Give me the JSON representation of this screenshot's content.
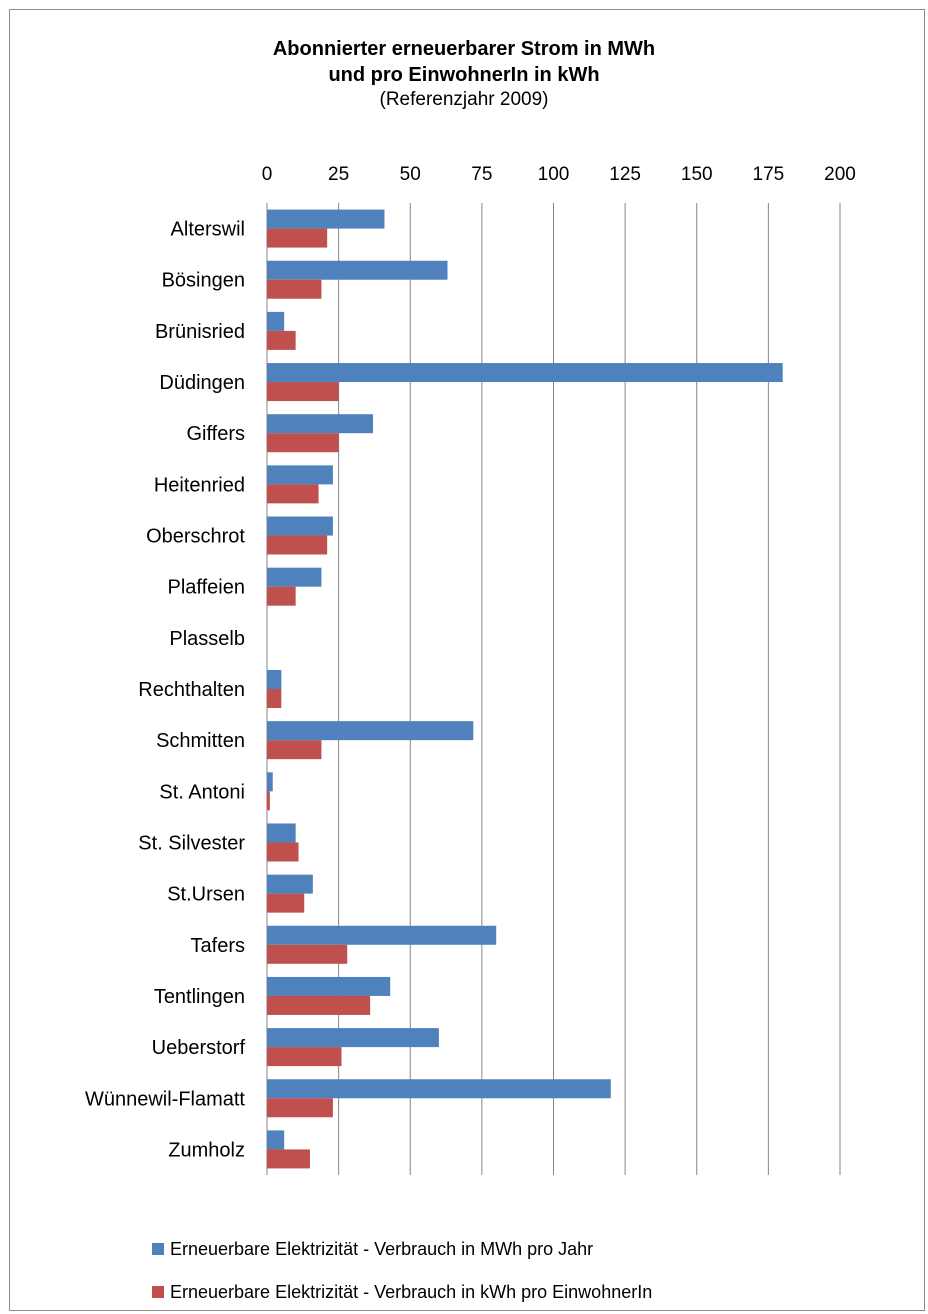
{
  "chart_data": {
    "type": "bar",
    "orientation": "horizontal",
    "title": [
      "Abonnierter erneuerbarer Strom in MWh",
      "und pro EinwohnerIn in kWh"
    ],
    "subtitle": "(Referenzjahr 2009)",
    "xlim": [
      0,
      200
    ],
    "x_ticks": [
      0,
      25,
      50,
      75,
      100,
      125,
      150,
      175,
      200
    ],
    "x_axis_position": "top",
    "grid": true,
    "legend_position": "bottom",
    "categories": [
      "Alterswil",
      "Bösingen",
      "Brünisried",
      "Düdingen",
      "Giffers",
      "Heitenried",
      "Oberschrot",
      "Plaffeien",
      "Plasselb",
      "Rechthalten",
      "Schmitten",
      "St. Antoni",
      "St. Silvester",
      "St.Ursen",
      "Tafers",
      "Tentlingen",
      "Ueberstorf",
      "Wünnewil-Flamatt",
      "Zumholz"
    ],
    "series": [
      {
        "name": "Erneuerbare Elektrizität - Verbrauch in MWh pro Jahr",
        "color": "#4f81bd",
        "values": [
          41,
          63,
          6,
          180,
          37,
          23,
          23,
          19,
          0,
          5,
          72,
          2,
          10,
          16,
          80,
          43,
          60,
          120,
          6
        ]
      },
      {
        "name": "Erneuerbare Elektrizität - Verbrauch in kWh pro EinwohnerIn",
        "color": "#c0504d",
        "values": [
          21,
          19,
          10,
          25,
          25,
          18,
          21,
          10,
          0,
          5,
          19,
          1,
          11,
          13,
          28,
          36,
          26,
          23,
          15
        ]
      }
    ]
  }
}
